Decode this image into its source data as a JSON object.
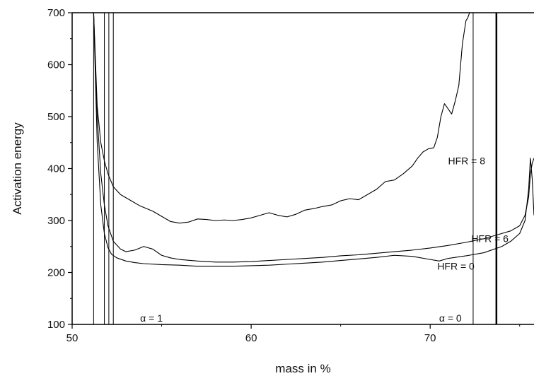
{
  "chart_data": {
    "type": "line",
    "title": "",
    "xlabel": "mass in  %",
    "ylabel": "Activation energy",
    "xlim": [
      50,
      75.8
    ],
    "ylim": [
      100,
      700
    ],
    "x_ticks": [
      50,
      60,
      70
    ],
    "y_ticks": [
      100,
      200,
      300,
      400,
      500,
      600,
      700
    ],
    "grid": false,
    "legend": "none",
    "series": [
      {
        "name": "HFR = 8",
        "color": "#000000",
        "x": [
          51.2,
          51.4,
          51.6,
          51.8,
          52.0,
          52.3,
          52.7,
          53.2,
          53.8,
          54.5,
          55.0,
          55.5,
          56.0,
          56.5,
          57.0,
          57.5,
          58.0,
          58.5,
          59.0,
          59.5,
          60.0,
          60.5,
          61.0,
          61.5,
          62.0,
          62.5,
          63.0,
          63.5,
          64.0,
          64.5,
          65.0,
          65.5,
          66.0,
          66.5,
          67.0,
          67.5,
          68.0,
          68.5,
          69.0,
          69.3,
          69.6,
          69.9,
          70.2,
          70.4,
          70.6,
          70.8,
          71.0,
          71.2,
          71.4,
          71.6,
          71.8,
          72.0,
          72.1,
          72.2
        ],
        "y": [
          700,
          520,
          450,
          415,
          390,
          365,
          350,
          340,
          328,
          318,
          308,
          298,
          295,
          297,
          303,
          302,
          300,
          301,
          300,
          302,
          305,
          310,
          315,
          310,
          307,
          312,
          320,
          323,
          327,
          330,
          338,
          342,
          340,
          350,
          360,
          375,
          378,
          390,
          405,
          420,
          432,
          438,
          440,
          460,
          500,
          525,
          515,
          505,
          530,
          560,
          640,
          685,
          690,
          700
        ]
      },
      {
        "name": "HFR = 6",
        "color": "#000000",
        "x": [
          51.2,
          51.4,
          51.6,
          51.8,
          52.0,
          52.3,
          52.7,
          53.0,
          53.5,
          54.0,
          54.5,
          55.0,
          55.5,
          56.0,
          57.0,
          58.0,
          59.0,
          60.0,
          61.0,
          62.0,
          63.0,
          64.0,
          65.0,
          66.0,
          67.0,
          68.0,
          69.0,
          70.0,
          71.0,
          72.0,
          73.0,
          74.0,
          74.5,
          75.0,
          75.3,
          75.5,
          75.6,
          75.7,
          75.8
        ],
        "y": [
          700,
          500,
          390,
          330,
          290,
          260,
          245,
          240,
          243,
          250,
          245,
          233,
          228,
          225,
          222,
          220,
          220,
          221,
          223,
          225,
          227,
          229,
          232,
          234,
          237,
          240,
          243,
          247,
          252,
          258,
          265,
          275,
          280,
          290,
          310,
          345,
          390,
          410,
          420
        ]
      },
      {
        "name": "HFR = 0",
        "color": "#000000",
        "x": [
          51.2,
          51.4,
          51.6,
          51.8,
          52.0,
          52.2,
          52.5,
          53.0,
          53.5,
          54.0,
          55.0,
          56.0,
          57.0,
          58.0,
          59.0,
          60.0,
          61.0,
          62.0,
          63.0,
          64.0,
          65.0,
          66.0,
          67.0,
          68.0,
          69.0,
          70.0,
          70.5,
          71.0,
          72.0,
          73.0,
          74.0,
          74.5,
          75.0,
          75.3,
          75.5,
          75.6,
          75.7,
          75.8
        ],
        "y": [
          700,
          450,
          330,
          275,
          248,
          235,
          228,
          222,
          219,
          217,
          215,
          214,
          212,
          212,
          212,
          213,
          214,
          216,
          218,
          220,
          223,
          226,
          229,
          233,
          231,
          225,
          222,
          227,
          232,
          238,
          250,
          260,
          275,
          300,
          360,
          420,
          380,
          310
        ]
      }
    ],
    "vertical_lines": [
      {
        "x": 51.2,
        "width": 1
      },
      {
        "x": 51.8,
        "width": 1
      },
      {
        "x": 52.05,
        "width": 1
      },
      {
        "x": 52.3,
        "width": 1
      },
      {
        "x": 72.4,
        "width": 1
      },
      {
        "x": 73.7,
        "width": 2.5
      }
    ],
    "annotations": [
      {
        "text": "HFR = 8",
        "x": 71.0,
        "y": 415
      },
      {
        "text": "HFR = 6",
        "x": 72.3,
        "y": 265
      },
      {
        "text": "HFR = 0",
        "x": 70.4,
        "y": 212
      },
      {
        "text": "α = 1",
        "x": 53.8,
        "y": 112
      },
      {
        "text": "α = 0",
        "x": 70.5,
        "y": 112
      }
    ]
  }
}
